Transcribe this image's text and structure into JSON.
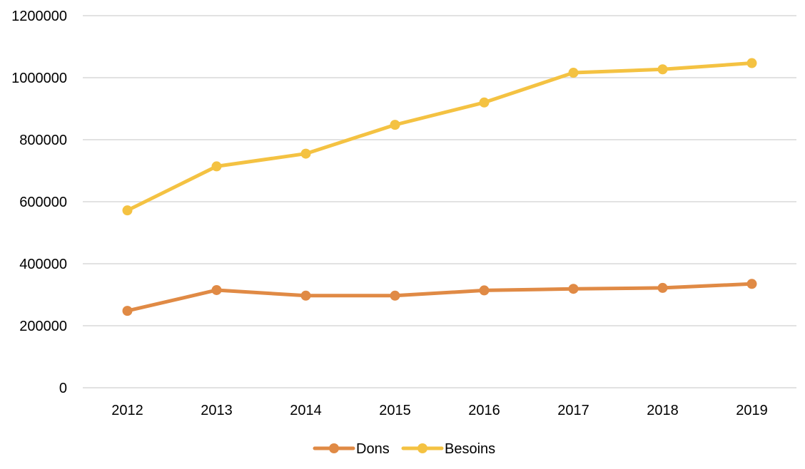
{
  "chart_data": {
    "type": "line",
    "title": "",
    "xlabel": "",
    "ylabel": "",
    "categories": [
      "2012",
      "2013",
      "2014",
      "2015",
      "2016",
      "2017",
      "2018",
      "2019"
    ],
    "ylim": [
      0,
      1200000
    ],
    "yticks": [
      "0",
      "200000",
      "400000",
      "600000",
      "800000",
      "1000000",
      "1200000"
    ],
    "grid": true,
    "legend_position": "bottom",
    "series": [
      {
        "name": "Dons",
        "color": "#e08a45",
        "values": [
          248000,
          315000,
          297000,
          297000,
          314000,
          319000,
          322000,
          335000
        ]
      },
      {
        "name": "Besoins",
        "color": "#f4c242",
        "values": [
          572000,
          714000,
          755000,
          848000,
          920000,
          1016000,
          1027000,
          1047000
        ]
      }
    ]
  }
}
